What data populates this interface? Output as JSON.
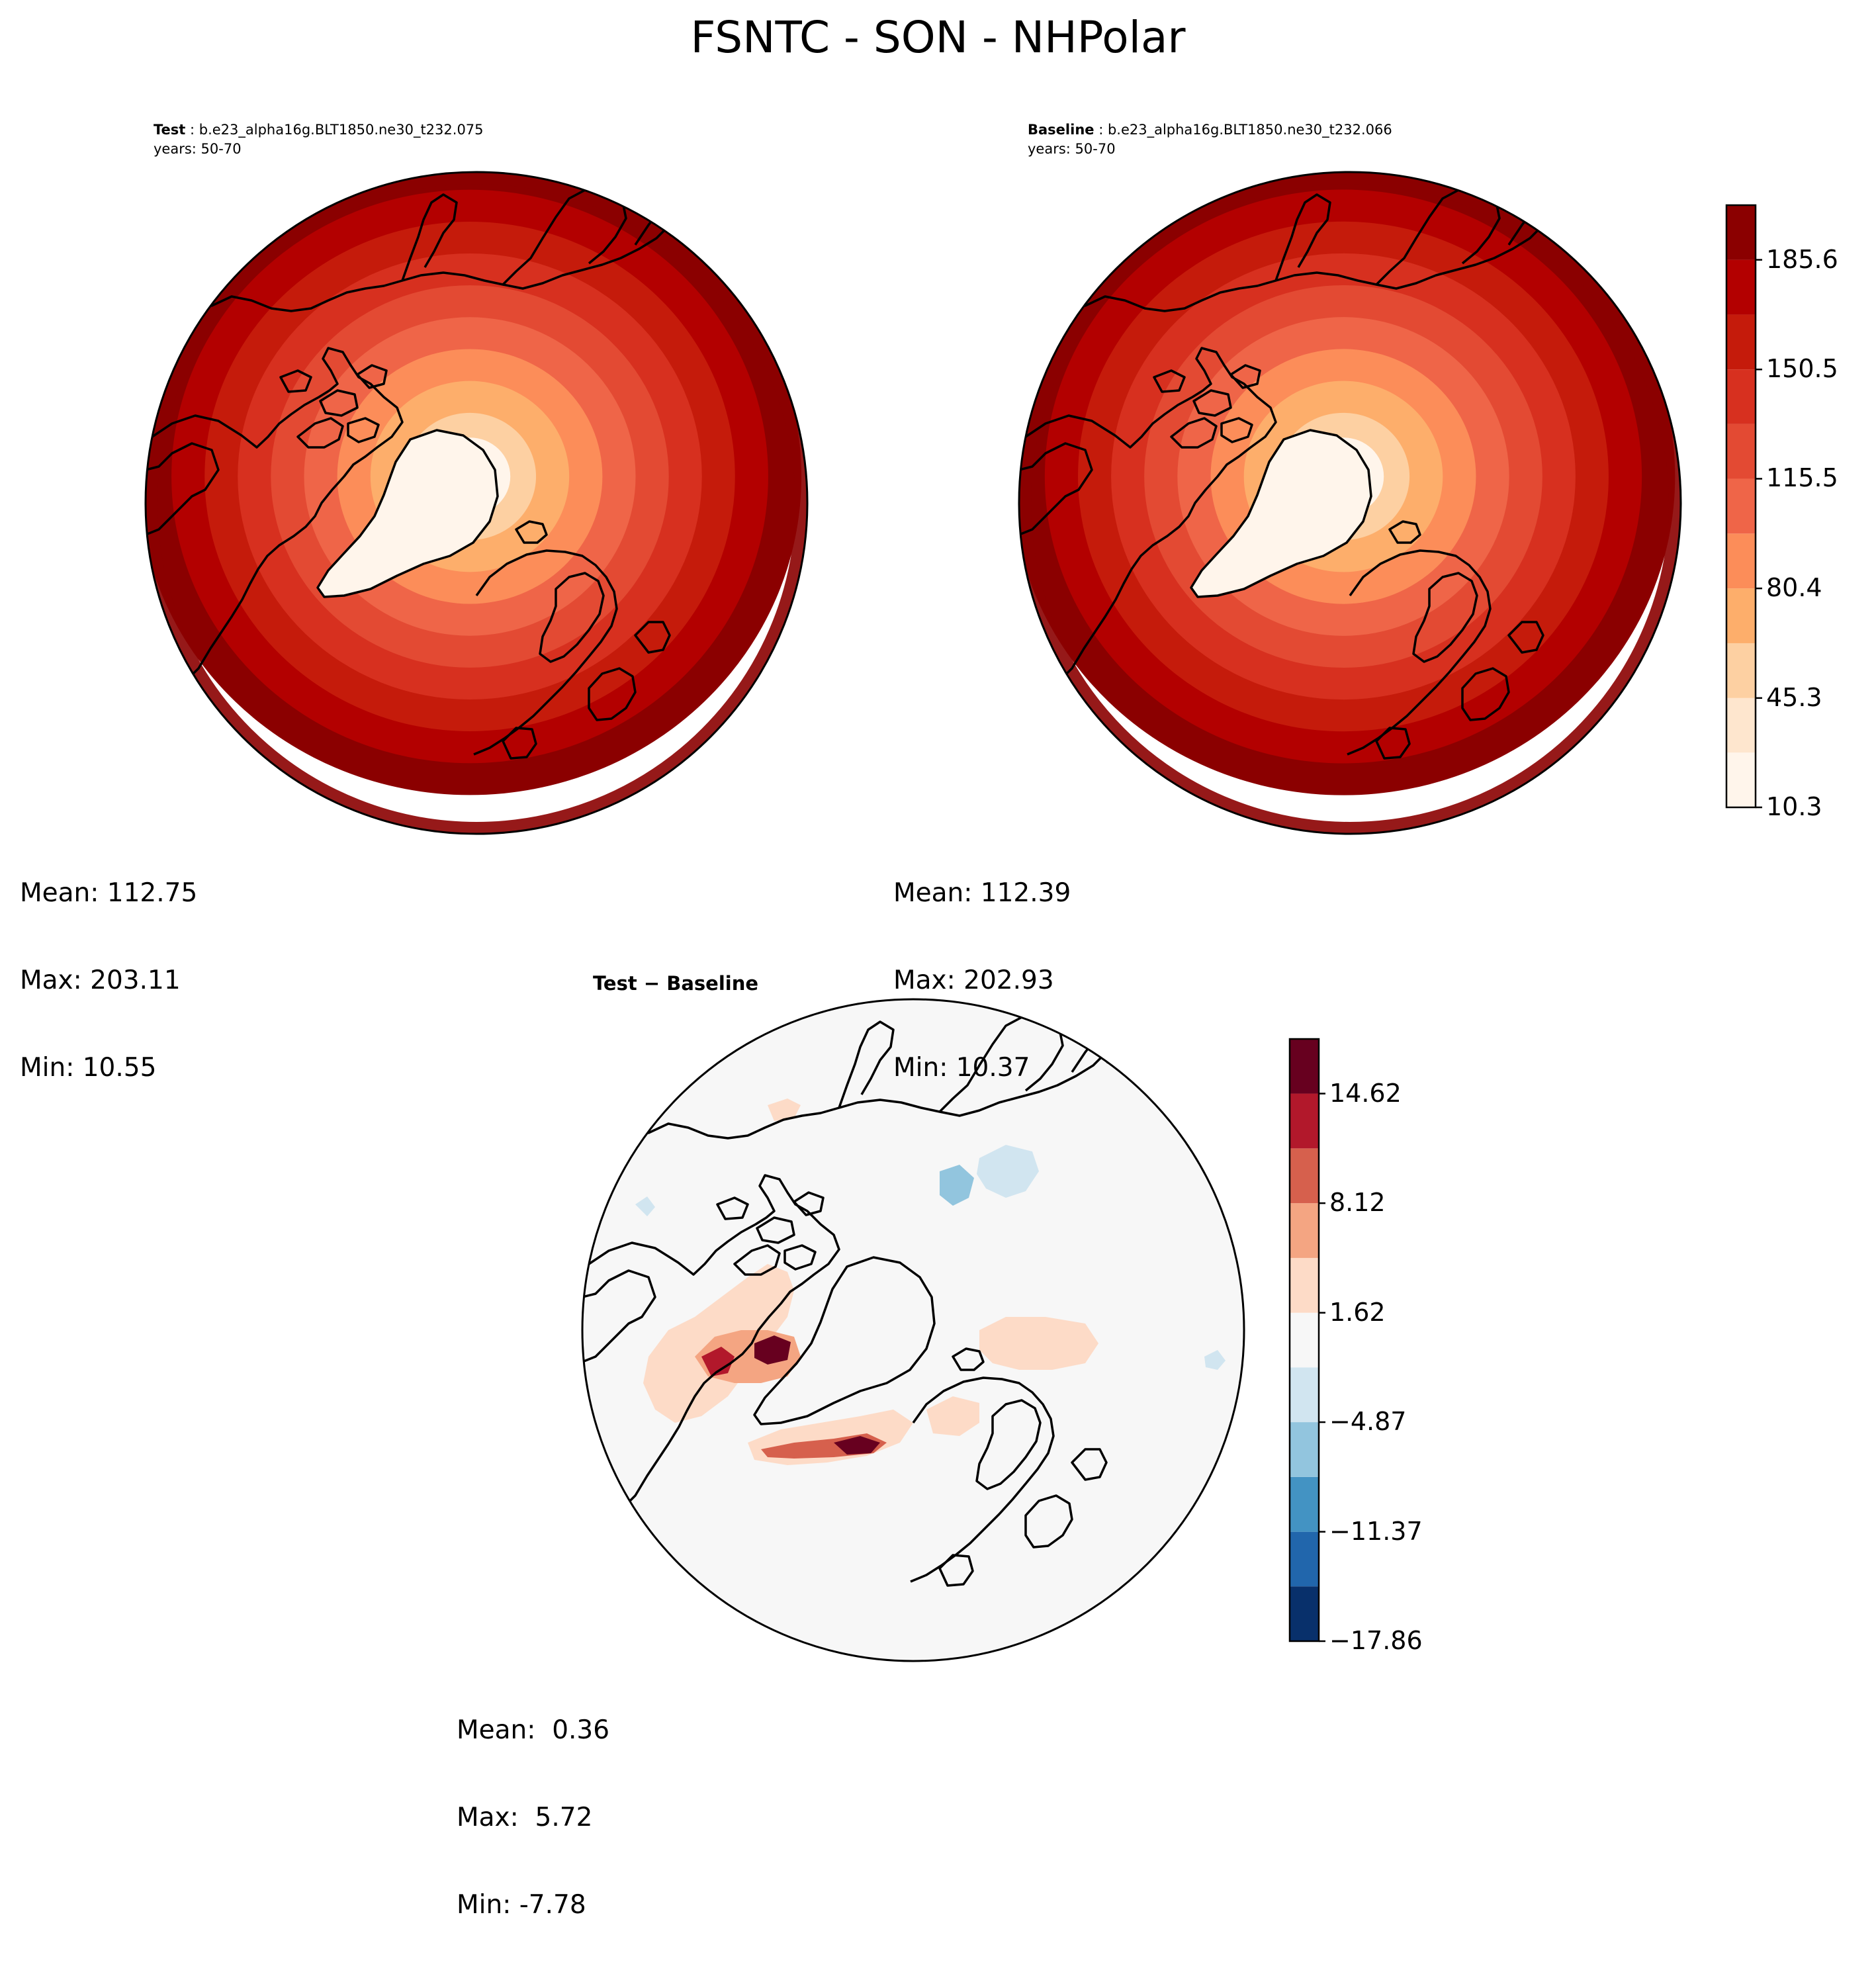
{
  "figure": {
    "title": "FSNTC - SON - NHPolar"
  },
  "chart_data": [
    {
      "type": "heatmap",
      "name": "test",
      "title_bold": "Test",
      "title_rest": " : b.e23_alpha16g.BLT1850.ne30_t232.075",
      "years": "years: 50-70",
      "projection": "north polar stereographic",
      "stats": {
        "mean": "Mean: 112.75",
        "max": "Max: 203.11",
        "min": "Min: 10.55"
      },
      "field_description": "Radial gradient: ~10 near North Pole / Greenland, rising to ~200 at 50N edge",
      "center_value": 10.3,
      "edge_value": 203.0
    },
    {
      "type": "heatmap",
      "name": "baseline",
      "title_bold": "Baseline",
      "title_rest": " : b.e23_alpha16g.BLT1850.ne30_t232.066",
      "years": "years: 50-70",
      "projection": "north polar stereographic",
      "stats": {
        "mean": "Mean: 112.39",
        "max": "Max: 202.93",
        "min": "Min: 10.37"
      },
      "center_value": 10.3,
      "edge_value": 202.9
    },
    {
      "type": "heatmap",
      "name": "difference",
      "title": "Test − Baseline",
      "projection": "north polar stereographic",
      "stats": {
        "mean": "Mean:  0.36",
        "max": "Max:  5.72",
        "min": "Min: -7.78"
      }
    }
  ],
  "colorbars": {
    "main": {
      "levels": [
        10.3,
        27.83,
        45.3,
        62.85,
        80.4,
        97.95,
        115.5,
        133.0,
        150.5,
        168.05,
        185.6,
        203.1
      ],
      "tick_labels": [
        "10.3",
        "45.3",
        "80.4",
        "115.5",
        "150.5",
        "185.6"
      ],
      "tick_levels": [
        10.3,
        45.3,
        80.4,
        115.5,
        150.5,
        185.6
      ],
      "colors": [
        "#fff5eb",
        "#fee6ce",
        "#fdd0a2",
        "#fdae6b",
        "#fc8d59",
        "#ef6548",
        "#e34a33",
        "#d7301f",
        "#c51b0b",
        "#b30000",
        "#8b0000"
      ]
    },
    "diff": {
      "levels": [
        -17.86,
        -14.61,
        -11.37,
        -8.12,
        -4.87,
        -1.62,
        1.62,
        4.87,
        8.12,
        11.37,
        14.62,
        17.86
      ],
      "tick_labels": [
        "−17.86",
        "−11.37",
        "−4.87",
        "1.62",
        "8.12",
        "14.62"
      ],
      "tick_levels": [
        -17.86,
        -11.37,
        -4.87,
        1.62,
        8.12,
        14.62
      ],
      "colors": [
        "#08306b",
        "#2166ac",
        "#4393c3",
        "#92c5de",
        "#d1e5f0",
        "#f7f7f7",
        "#fddbc7",
        "#f4a582",
        "#d6604d",
        "#b2182b",
        "#67001f"
      ]
    }
  }
}
